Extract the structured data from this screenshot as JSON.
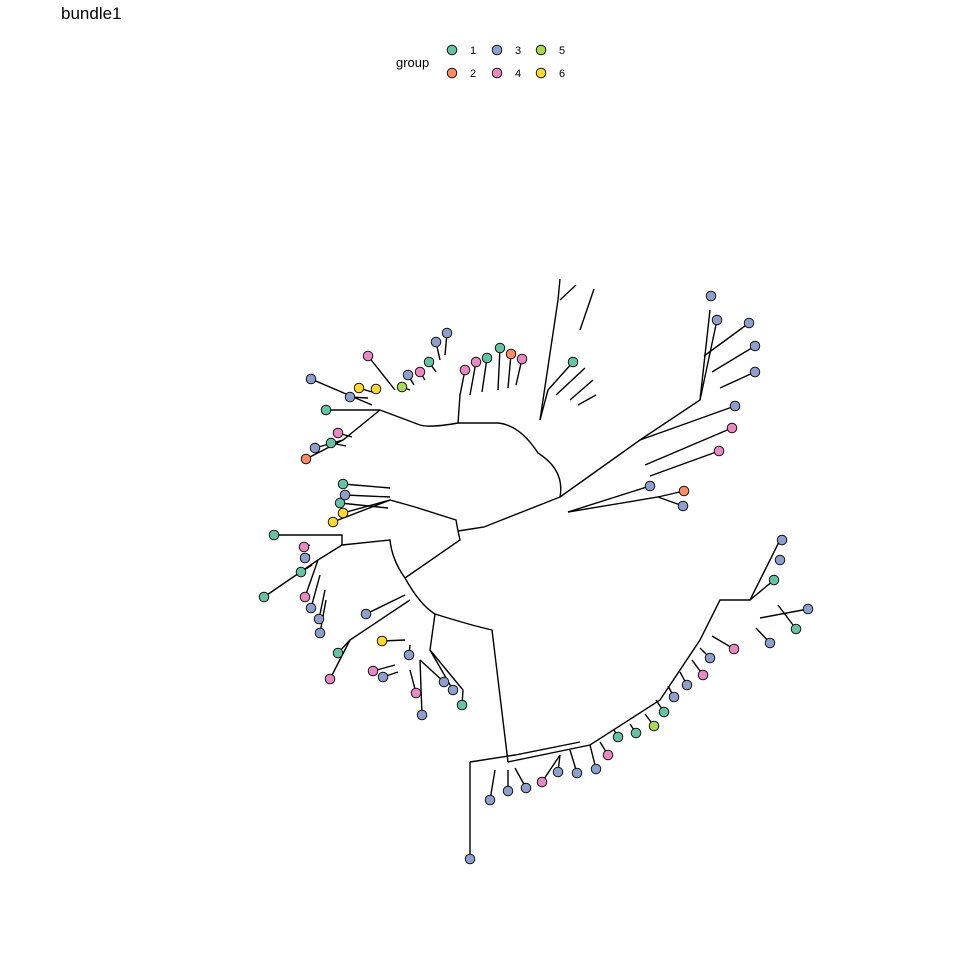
{
  "chart_data": {
    "type": "dendrogram",
    "layout": "circular",
    "title": "bundle1",
    "legend": {
      "title": "group",
      "placement": "top",
      "entries": [
        {
          "label": "1",
          "color": "#66C2A5"
        },
        {
          "label": "2",
          "color": "#FC8D62"
        },
        {
          "label": "3",
          "color": "#8DA0CB"
        },
        {
          "label": "4",
          "color": "#E78AC3"
        },
        {
          "label": "5",
          "color": "#A6D854"
        },
        {
          "label": "6",
          "color": "#FFD92F"
        }
      ]
    },
    "leaf_groups_clockwise_from_top_right": [
      "3",
      "3",
      "3",
      "3",
      "3",
      "3",
      "4",
      "4",
      "3",
      "2",
      "3",
      "3",
      "3",
      "1",
      "3",
      "1",
      "3",
      "4",
      "3",
      "4",
      "3",
      "3",
      "1",
      "5",
      "1",
      "1",
      "4",
      "3",
      "3",
      "3",
      "4",
      "3",
      "3",
      "3",
      "3",
      "3",
      "4",
      "1",
      "3",
      "4",
      "3",
      "4",
      "6",
      "3",
      "3",
      "1",
      "3",
      "4",
      "1",
      "3",
      "3",
      "3",
      "1",
      "3",
      "4",
      "1",
      "6",
      "6",
      "1",
      "3",
      "1",
      "2",
      "3",
      "1",
      "4",
      "1",
      "3",
      "3",
      "6",
      "6",
      "4",
      "5",
      "3",
      "4",
      "1",
      "3",
      "3",
      "4",
      "4",
      "1",
      "1",
      "2",
      "4",
      "1"
    ],
    "leaf_count": 84,
    "grid": false
  }
}
